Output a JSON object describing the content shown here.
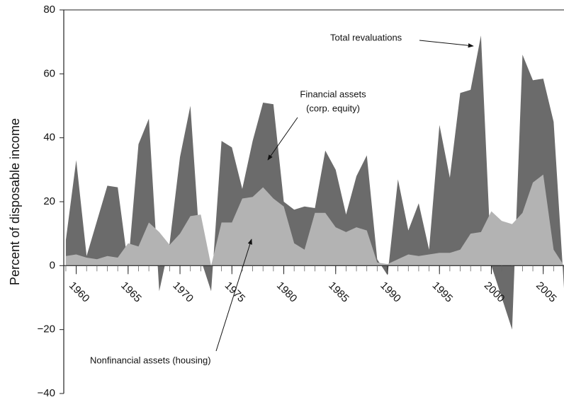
{
  "chart_data": {
    "type": "area",
    "ylabel": "Percent of disposable income",
    "x": [
      1959,
      1960,
      1961,
      1962,
      1963,
      1964,
      1965,
      1966,
      1967,
      1968,
      1969,
      1970,
      1971,
      1972,
      1973,
      1974,
      1975,
      1976,
      1977,
      1978,
      1979,
      1980,
      1981,
      1982,
      1983,
      1984,
      1985,
      1986,
      1987,
      1988,
      1989,
      1990,
      1991,
      1992,
      1993,
      1994,
      1995,
      1996,
      1997,
      1998,
      1999,
      2000,
      2001,
      2002,
      2003,
      2004,
      2005,
      2006,
      2007
    ],
    "series": [
      {
        "name": "Total revaluations",
        "color": "#6b6b6b",
        "values": [
          8,
          33,
          3,
          14,
          25,
          24.5,
          0,
          38,
          46,
          -8,
          7,
          34,
          50,
          2,
          -8,
          39,
          37,
          24,
          39,
          51,
          50.5,
          20,
          17.5,
          18.5,
          18,
          36,
          30,
          16,
          28,
          34.5,
          2,
          -3,
          27,
          11,
          19.5,
          5,
          44,
          27.5,
          54,
          55,
          72,
          0,
          -10,
          -20,
          66,
          58,
          58.5,
          45,
          -7
        ]
      },
      {
        "name": "Nonfinancial assets (housing)",
        "color": "#b3b3b3",
        "values": [
          3,
          3.5,
          2.5,
          2,
          3,
          2.5,
          7,
          6,
          13.5,
          10.5,
          6.5,
          10,
          15.5,
          16,
          0,
          13.5,
          13.5,
          21,
          21.5,
          24.5,
          21,
          18.5,
          7,
          5,
          16.5,
          16.5,
          12,
          10.5,
          12,
          11,
          1,
          0.5,
          2,
          3.5,
          3,
          3.5,
          4,
          4,
          5,
          10,
          10.5,
          17,
          14,
          13,
          16.5,
          26,
          28.5,
          5,
          0
        ]
      }
    ],
    "annotations": [
      "Total revaluations",
      "Financial assets",
      "(corp. equity)",
      "Nonfinancial assets (housing)"
    ],
    "xlim": [
      1958.8,
      2007
    ],
    "xticks": [
      1960,
      1965,
      1970,
      1975,
      1980,
      1985,
      1990,
      1995,
      2000,
      2005
    ],
    "ylim": [
      -40,
      80
    ],
    "yticks": [
      {
        "value": -40,
        "label": "−40"
      },
      {
        "value": -20,
        "label": "−20"
      },
      0,
      20,
      40,
      60,
      80
    ]
  }
}
